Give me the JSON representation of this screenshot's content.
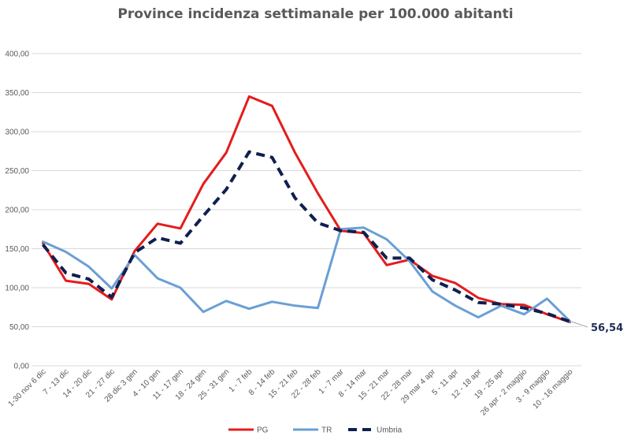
{
  "chart_data": {
    "type": "line",
    "title": "Province incidenza settimanale per 100.000 abitanti",
    "ylim": [
      0,
      400
    ],
    "y_ticks": [
      "0,00",
      "50,00",
      "100,00",
      "150,00",
      "200,00",
      "250,00",
      "300,00",
      "350,00",
      "400,00"
    ],
    "grid": true,
    "legend_position": "bottom",
    "categories": [
      "1-30 nov 6 dic",
      "7 - 13 dic",
      "14 - 20 dic",
      "21 - 27 dic",
      "28 dic 3 gen",
      "4 - 10 gen",
      "11 - 17 gen",
      "18 - 24 gen",
      "25 - 31 gen",
      "1 - 7 feb",
      "8 - 14 feb",
      "15 - 21 feb",
      "22 - 28 feb",
      "1 - 7 mar",
      "8 - 14 mar",
      "15 - 21 mar",
      "22 - 28 mar",
      "29 mar 4 apr",
      "5 - 11 apr",
      "12 - 18 apr",
      "19 - 25 apr",
      "26 apr - 2 maggio",
      "3 - 9 maggio",
      "10 - 16 maggio"
    ],
    "series": [
      {
        "name": "PG",
        "color": "#e41c1c",
        "style": "solid",
        "values": [
          157,
          109,
          105,
          85,
          147,
          182,
          176,
          233,
          273,
          345,
          333,
          273,
          221,
          173,
          170,
          129,
          136,
          115,
          106,
          87,
          79,
          78,
          66,
          56
        ]
      },
      {
        "name": "TR",
        "color": "#6a9fd4",
        "style": "solid",
        "values": [
          159,
          146,
          127,
          99,
          142,
          112,
          100,
          69,
          83,
          73,
          82,
          77,
          74,
          175,
          177,
          162,
          134,
          95,
          77,
          62,
          77,
          66,
          86,
          57
        ]
      },
      {
        "name": "Umbria",
        "color": "#0f1f4f",
        "style": "dashed",
        "values": [
          155,
          119,
          111,
          88,
          145,
          164,
          157,
          192,
          226,
          274,
          267,
          215,
          183,
          173,
          171,
          138,
          138,
          110,
          97,
          81,
          79,
          74,
          67,
          56.54
        ]
      }
    ],
    "end_label": "56,54"
  }
}
